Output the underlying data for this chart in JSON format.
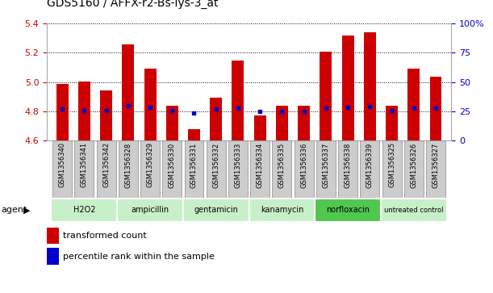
{
  "title": "GDS5160 / AFFX-r2-Bs-lys-3_at",
  "samples": [
    "GSM1356340",
    "GSM1356341",
    "GSM1356342",
    "GSM1356328",
    "GSM1356329",
    "GSM1356330",
    "GSM1356331",
    "GSM1356332",
    "GSM1356333",
    "GSM1356334",
    "GSM1356335",
    "GSM1356336",
    "GSM1356337",
    "GSM1356338",
    "GSM1356339",
    "GSM1356325",
    "GSM1356326",
    "GSM1356327"
  ],
  "bar_values": [
    4.985,
    5.002,
    4.942,
    5.255,
    5.092,
    4.84,
    4.678,
    4.892,
    5.145,
    4.772,
    4.84,
    4.84,
    5.21,
    5.315,
    5.34,
    4.84,
    5.09,
    5.038
  ],
  "blue_dots": [
    4.818,
    4.805,
    4.803,
    4.838,
    4.828,
    4.804,
    4.79,
    4.815,
    4.822,
    4.797,
    4.802,
    4.802,
    4.822,
    4.828,
    4.83,
    4.803,
    4.82,
    4.822
  ],
  "ylim_left": [
    4.6,
    5.4
  ],
  "ylim_right": [
    0,
    100
  ],
  "yticks_left": [
    4.6,
    4.8,
    5.0,
    5.2,
    5.4
  ],
  "yticks_right": [
    0,
    25,
    50,
    75,
    100
  ],
  "bar_color": "#cc0000",
  "dot_color": "#0000cc",
  "bar_bottom": 4.6,
  "agents": [
    {
      "label": "H2O2",
      "start": 0,
      "end": 3,
      "color": "#c8f0c8"
    },
    {
      "label": "ampicillin",
      "start": 3,
      "end": 6,
      "color": "#c8f0c8"
    },
    {
      "label": "gentamicin",
      "start": 6,
      "end": 9,
      "color": "#c8f0c8"
    },
    {
      "label": "kanamycin",
      "start": 9,
      "end": 12,
      "color": "#c8f0c8"
    },
    {
      "label": "norfloxacin",
      "start": 12,
      "end": 15,
      "color": "#50c850"
    },
    {
      "label": "untreated control",
      "start": 15,
      "end": 18,
      "color": "#c8f0c8"
    }
  ],
  "legend_items": [
    {
      "label": "transformed count",
      "color": "#cc0000"
    },
    {
      "label": "percentile rank within the sample",
      "color": "#0000cc"
    }
  ],
  "agent_label": "agent",
  "bg_color": "#ffffff",
  "title_color": "#000000",
  "left_tick_color": "#cc0000",
  "right_tick_color": "#0000cc",
  "xticklabel_bg": "#cccccc",
  "xticklabel_border": "#888888"
}
